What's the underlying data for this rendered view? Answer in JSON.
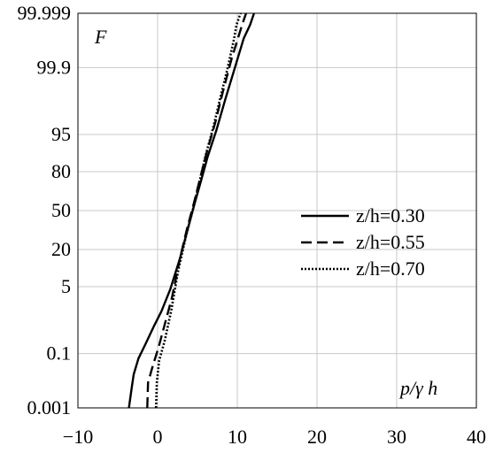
{
  "chart_data": {
    "type": "line",
    "title": "",
    "xlabel": "p/γ h",
    "ylabel": "F",
    "xlim": [
      -10,
      40
    ],
    "y_scale": "normal-probability",
    "ylim": [
      0.001,
      99.999
    ],
    "grid": true,
    "legend_position": "center-right",
    "x_ticks": [
      {
        "v": -10,
        "label": "−10"
      },
      {
        "v": 0,
        "label": "0"
      },
      {
        "v": 10,
        "label": "10"
      },
      {
        "v": 20,
        "label": "20"
      },
      {
        "v": 30,
        "label": "30"
      },
      {
        "v": 40,
        "label": "40"
      }
    ],
    "y_ticks": [
      {
        "v": 0.001,
        "label": "0.001"
      },
      {
        "v": 0.1,
        "label": "0.1"
      },
      {
        "v": 5,
        "label": "5"
      },
      {
        "v": 20,
        "label": "20"
      },
      {
        "v": 50,
        "label": "50"
      },
      {
        "v": 80,
        "label": "80"
      },
      {
        "v": 95,
        "label": "95"
      },
      {
        "v": 99.9,
        "label": "99.9"
      },
      {
        "v": 99.999,
        "label": "99.999"
      }
    ],
    "series": [
      {
        "name": "z/h=0.30",
        "style": "solid",
        "color": "#000000",
        "points": [
          [
            -3.6,
            0.001
          ],
          [
            -3.3,
            0.005
          ],
          [
            -3.0,
            0.02
          ],
          [
            -2.4,
            0.07
          ],
          [
            -1.5,
            0.2
          ],
          [
            -0.5,
            0.6
          ],
          [
            0.5,
            1.5
          ],
          [
            1.6,
            4.5
          ],
          [
            2.8,
            15
          ],
          [
            3.8,
            35
          ],
          [
            4.6,
            55
          ],
          [
            5.5,
            75
          ],
          [
            6.3,
            88
          ],
          [
            7.4,
            96
          ],
          [
            8.5,
            99.2
          ],
          [
            9.7,
            99.9
          ],
          [
            10.8,
            99.99
          ],
          [
            11.6,
            99.997
          ],
          [
            12.1,
            99.999
          ]
        ]
      },
      {
        "name": "z/h=0.55",
        "style": "dashed",
        "color": "#000000",
        "points": [
          [
            -1.3,
            0.001
          ],
          [
            -1.2,
            0.01
          ],
          [
            -0.6,
            0.04
          ],
          [
            0.1,
            0.15
          ],
          [
            0.9,
            0.7
          ],
          [
            1.8,
            3
          ],
          [
            2.8,
            15
          ],
          [
            3.7,
            35
          ],
          [
            4.5,
            55
          ],
          [
            5.3,
            75
          ],
          [
            6.2,
            90
          ],
          [
            7.2,
            97
          ],
          [
            8.2,
            99.5
          ],
          [
            9.3,
            99.95
          ],
          [
            10.6,
            99.997
          ],
          [
            11.1,
            99.999
          ]
        ]
      },
      {
        "name": "z/h=0.70",
        "style": "dotted",
        "color": "#000000",
        "points": [
          [
            -0.2,
            0.001
          ],
          [
            -0.1,
            0.01
          ],
          [
            0.2,
            0.06
          ],
          [
            0.9,
            0.25
          ],
          [
            1.7,
            1.5
          ],
          [
            2.6,
            10
          ],
          [
            3.6,
            30
          ],
          [
            4.4,
            50
          ],
          [
            5.2,
            72
          ],
          [
            6.0,
            88
          ],
          [
            7.0,
            96.5
          ],
          [
            7.9,
            99.3
          ],
          [
            8.8,
            99.9
          ],
          [
            9.6,
            99.99
          ],
          [
            9.9,
            99.997
          ],
          [
            10.4,
            99.999
          ]
        ]
      }
    ]
  }
}
